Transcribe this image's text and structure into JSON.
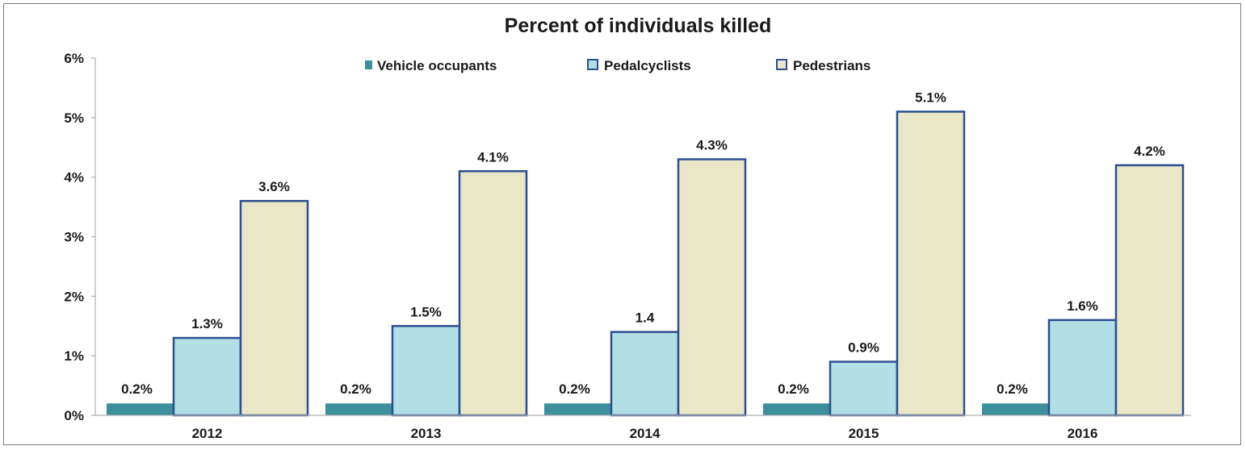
{
  "chart_data": {
    "type": "bar",
    "title": "Percent of individuals killed",
    "xlabel": "",
    "ylabel": "",
    "ylim": [
      0,
      6
    ],
    "yticks": [
      "0%",
      "1%",
      "2%",
      "3%",
      "4%",
      "5%",
      "6%"
    ],
    "categories": [
      "2012",
      "2013",
      "2014",
      "2015",
      "2016"
    ],
    "legend_position": "top-center",
    "grid": false,
    "series": [
      {
        "name": "Vehicle occupants",
        "color": "#3d8f9b",
        "values": [
          0.2,
          0.2,
          0.2,
          0.2,
          0.2
        ],
        "labels": [
          "0.2%",
          "0.2%",
          "0.2%",
          "0.2%",
          "0.2%"
        ]
      },
      {
        "name": "Pedalcyclists",
        "color": "#b2dfe6",
        "values": [
          1.3,
          1.5,
          1.4,
          0.9,
          1.6
        ],
        "labels": [
          "1.3%",
          "1.5%",
          "1.4",
          "0.9%",
          "1.6%"
        ]
      },
      {
        "name": "Pedestrians",
        "color": "#eae6c8",
        "values": [
          3.6,
          4.1,
          4.3,
          5.1,
          4.2
        ],
        "labels": [
          "3.6%",
          "4.1%",
          "4.3%",
          "5.1%",
          "4.2%"
        ]
      }
    ]
  }
}
